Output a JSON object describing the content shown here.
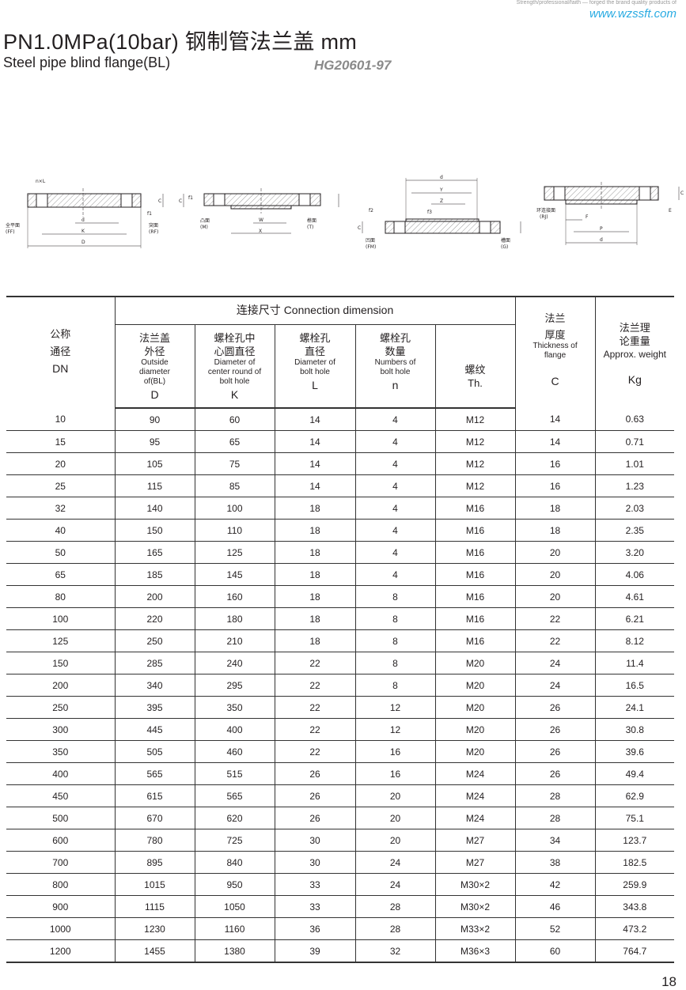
{
  "header": {
    "slogan": "Strength/professional/faith — forged the brand quality products of",
    "website": "www.wzssft.com",
    "title": "PN1.0MPa(10bar) 钢制管法兰盖  mm",
    "subtitle": "Steel pipe blind flange(BL)",
    "standard": "HG20601-97"
  },
  "diagrams": {
    "ff_rf": {
      "nxl": "n×L",
      "d": "d",
      "k": "K",
      "D": "D",
      "c": "C",
      "f1": "f1",
      "ff_cn": "全平面",
      "ff_en": "(FF)",
      "rf_cn": "突面",
      "rf_en": "(RF)"
    },
    "m_t": {
      "c": "C",
      "f1": "f1",
      "w": "W",
      "x": "X",
      "m_cn": "凸面",
      "m_en": "(M)",
      "t_cn": "榫面",
      "t_en": "(T)"
    },
    "fm_g": {
      "d": "d",
      "y": "Y",
      "z": "Z",
      "c": "C",
      "f2": "f2",
      "f3": "f3",
      "fm_cn": "凹面",
      "fm_en": "(FM)",
      "g_cn": "槽面",
      "g_en": "(G)"
    },
    "rj": {
      "c": "C",
      "e": "E",
      "f": "F",
      "p": "P",
      "d": "d",
      "rj_cn": "环连接面",
      "rj_en": "(RJ)"
    }
  },
  "table": {
    "headers": {
      "dn": {
        "cn1": "公称",
        "cn2": "通径",
        "sym": "DN"
      },
      "connection": "连接尺寸   Connection dimension",
      "D": {
        "cn1": "法兰盖",
        "cn2": "外径",
        "en": "Outside diameter of(BL)",
        "sym": "D"
      },
      "K": {
        "cn1": "螺栓孔中",
        "cn2": "心圆直径",
        "en": "Diameter of center round of bolt hole",
        "sym": "K"
      },
      "L": {
        "cn1": "螺栓孔",
        "cn2": "直径",
        "en": "Diameter of bolt hole",
        "sym": "L"
      },
      "n": {
        "cn1": "螺栓孔",
        "cn2": "数量",
        "en": "Numbers of bolt hole",
        "sym": "n"
      },
      "th": {
        "cn": "螺纹",
        "sym": "Th."
      },
      "C": {
        "cn1": "法兰",
        "cn2": "厚度",
        "en": "Thickness of flange",
        "sym": "C"
      },
      "kg": {
        "cn1": "法兰理",
        "cn2": "论重量",
        "en": "Approx. weight",
        "sym": "Kg"
      }
    },
    "rows": [
      [
        "10",
        "90",
        "60",
        "14",
        "4",
        "M12",
        "14",
        "0.63"
      ],
      [
        "15",
        "95",
        "65",
        "14",
        "4",
        "M12",
        "14",
        "0.71"
      ],
      [
        "20",
        "105",
        "75",
        "14",
        "4",
        "M12",
        "16",
        "1.01"
      ],
      [
        "25",
        "115",
        "85",
        "14",
        "4",
        "M12",
        "16",
        "1.23"
      ],
      [
        "32",
        "140",
        "100",
        "18",
        "4",
        "M16",
        "18",
        "2.03"
      ],
      [
        "40",
        "150",
        "110",
        "18",
        "4",
        "M16",
        "18",
        "2.35"
      ],
      [
        "50",
        "165",
        "125",
        "18",
        "4",
        "M16",
        "20",
        "3.20"
      ],
      [
        "65",
        "185",
        "145",
        "18",
        "4",
        "M16",
        "20",
        "4.06"
      ],
      [
        "80",
        "200",
        "160",
        "18",
        "8",
        "M16",
        "20",
        "4.61"
      ],
      [
        "100",
        "220",
        "180",
        "18",
        "8",
        "M16",
        "22",
        "6.21"
      ],
      [
        "125",
        "250",
        "210",
        "18",
        "8",
        "M16",
        "22",
        "8.12"
      ],
      [
        "150",
        "285",
        "240",
        "22",
        "8",
        "M20",
        "24",
        "11.4"
      ],
      [
        "200",
        "340",
        "295",
        "22",
        "8",
        "M20",
        "24",
        "16.5"
      ],
      [
        "250",
        "395",
        "350",
        "22",
        "12",
        "M20",
        "26",
        "24.1"
      ],
      [
        "300",
        "445",
        "400",
        "22",
        "12",
        "M20",
        "26",
        "30.8"
      ],
      [
        "350",
        "505",
        "460",
        "22",
        "16",
        "M20",
        "26",
        "39.6"
      ],
      [
        "400",
        "565",
        "515",
        "26",
        "16",
        "M24",
        "26",
        "49.4"
      ],
      [
        "450",
        "615",
        "565",
        "26",
        "20",
        "M24",
        "28",
        "62.9"
      ],
      [
        "500",
        "670",
        "620",
        "26",
        "20",
        "M24",
        "28",
        "75.1"
      ],
      [
        "600",
        "780",
        "725",
        "30",
        "20",
        "M27",
        "34",
        "123.7"
      ],
      [
        "700",
        "895",
        "840",
        "30",
        "24",
        "M27",
        "38",
        "182.5"
      ],
      [
        "800",
        "1015",
        "950",
        "33",
        "24",
        "M30×2",
        "42",
        "259.9"
      ],
      [
        "900",
        "1115",
        "1050",
        "33",
        "28",
        "M30×2",
        "46",
        "343.8"
      ],
      [
        "1000",
        "1230",
        "1160",
        "36",
        "28",
        "M33×2",
        "52",
        "473.2"
      ],
      [
        "1200",
        "1455",
        "1380",
        "39",
        "32",
        "M36×3",
        "60",
        "764.7"
      ]
    ]
  },
  "page_number": "18",
  "colors": {
    "website": "#29abe2",
    "standard": "#8a8a8a",
    "text": "#231f20"
  }
}
